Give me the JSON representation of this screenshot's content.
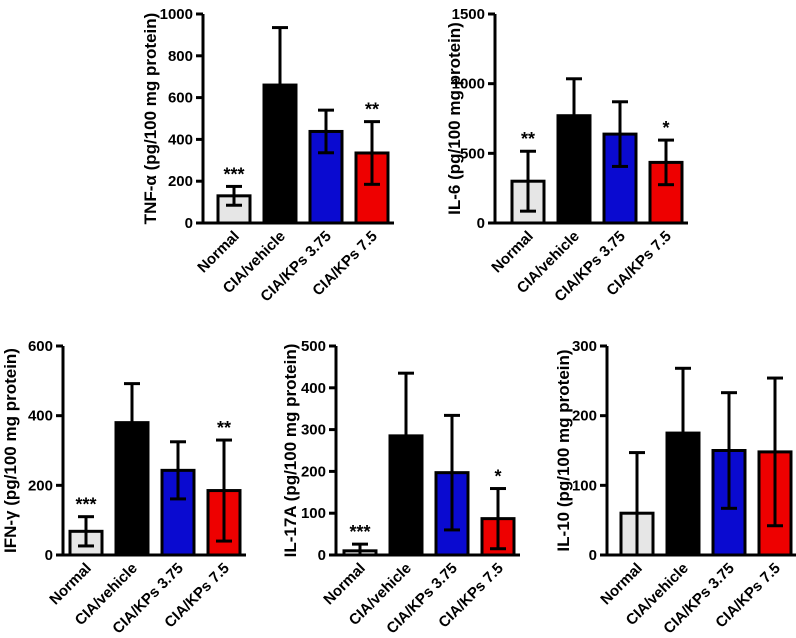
{
  "chart_data": [
    {
      "type": "bar",
      "ylabel": "TNF-α (pg/100 mg protein)",
      "ylim": [
        0,
        1000
      ],
      "yticks": [
        "0",
        "200",
        "400",
        "600",
        "800",
        "1000"
      ],
      "categories": [
        "Normal",
        "CIA/vehicle",
        "CIA/KPs 3.75",
        "CIA/KPs 7.5"
      ],
      "values": [
        130,
        660,
        438,
        335
      ],
      "errors": [
        45,
        275,
        102,
        150
      ],
      "significance": [
        "***",
        "",
        "",
        "**"
      ],
      "colors": [
        "#e6e6e6",
        "#000000",
        "#0a0ad0",
        "#ee0000"
      ]
    },
    {
      "type": "bar",
      "ylabel": "IL-6 (pg/100 mg protein)",
      "ylim": [
        0,
        1500
      ],
      "yticks": [
        "0",
        "500",
        "1000",
        "1500"
      ],
      "categories": [
        "Normal",
        "CIA/vehicle",
        "CIA/KPs 3.75",
        "CIA/KPs 7.5"
      ],
      "values": [
        300,
        770,
        638,
        435
      ],
      "errors": [
        215,
        265,
        232,
        160
      ],
      "significance": [
        "**",
        "",
        "",
        "*"
      ],
      "colors": [
        "#e6e6e6",
        "#000000",
        "#0a0ad0",
        "#ee0000"
      ]
    },
    {
      "type": "bar",
      "ylabel": "IFN-γ (pg/100 mg protein)",
      "ylim": [
        0,
        600
      ],
      "yticks": [
        "0",
        "200",
        "400",
        "600"
      ],
      "categories": [
        "Normal",
        "CIA/vehicle",
        "CIA/KPs 3.75",
        "CIA/KPs 7.5"
      ],
      "values": [
        68,
        380,
        243,
        185
      ],
      "errors": [
        42,
        112,
        82,
        145
      ],
      "significance": [
        "***",
        "",
        "",
        "**"
      ],
      "colors": [
        "#e6e6e6",
        "#000000",
        "#0a0ad0",
        "#ee0000"
      ]
    },
    {
      "type": "bar",
      "ylabel": "IL-17A (pg/100 mg protein)",
      "ylim": [
        0,
        500
      ],
      "yticks": [
        "0",
        "100",
        "200",
        "300",
        "400",
        "500"
      ],
      "categories": [
        "Normal",
        "CIA/vehicle",
        "CIA/KPs 3.75",
        "CIA/KPs 7.5"
      ],
      "values": [
        10,
        285,
        197,
        87
      ],
      "errors": [
        16,
        150,
        137,
        72
      ],
      "significance": [
        "***",
        "",
        "",
        "*"
      ],
      "colors": [
        "#e6e6e6",
        "#000000",
        "#0a0ad0",
        "#ee0000"
      ]
    },
    {
      "type": "bar",
      "ylabel": "IL-10 (pg/100 mg protein)",
      "ylim": [
        0,
        300
      ],
      "yticks": [
        "0",
        "100",
        "200",
        "300"
      ],
      "categories": [
        "Normal",
        "CIA/vehicle",
        "CIA/KPs 3.75",
        "CIA/KPs 7.5"
      ],
      "values": [
        60,
        175,
        150,
        148
      ],
      "errors": [
        87,
        93,
        83,
        106
      ],
      "significance": [
        "",
        "",
        "",
        ""
      ],
      "colors": [
        "#e6e6e6",
        "#000000",
        "#0a0ad0",
        "#ee0000"
      ]
    }
  ]
}
